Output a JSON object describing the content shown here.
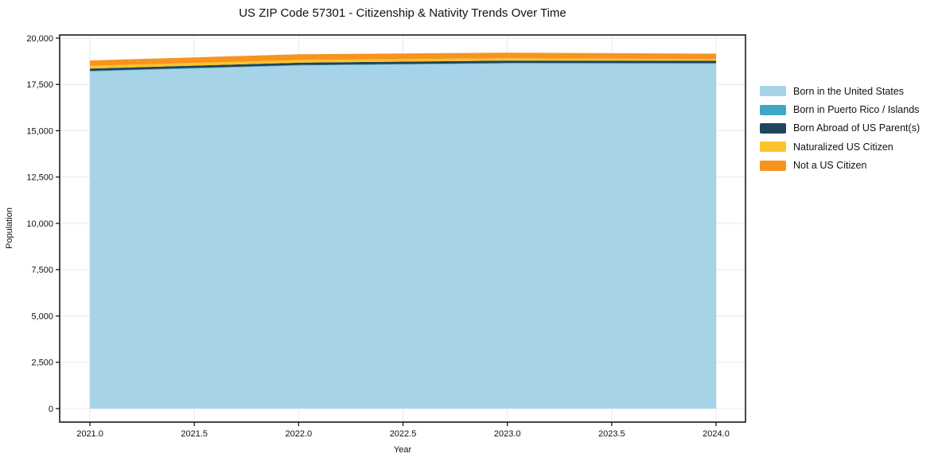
{
  "title": "US ZIP Code 57301 - Citizenship & Nativity Trends Over Time",
  "chart_data": {
    "type": "area",
    "stacked": true,
    "title": "US ZIP Code 57301 - Citizenship & Nativity Trends Over Time",
    "xlabel": "Year",
    "ylabel": "Population",
    "x": [
      2021,
      2022,
      2023,
      2024
    ],
    "series": [
      {
        "name": "Born in the United States",
        "color": "#a6d3e8",
        "values": [
          18200,
          18520,
          18630,
          18620
        ]
      },
      {
        "name": "Born in Puerto Rico / Islands",
        "color": "#3fa6c3",
        "values": [
          30,
          30,
          30,
          30
        ]
      },
      {
        "name": "Born Abroad of US Parent(s)",
        "color": "#1f455c",
        "values": [
          125,
          125,
          125,
          125
        ]
      },
      {
        "name": "Naturalized US Citizen",
        "color": "#fcc32d",
        "values": [
          150,
          145,
          130,
          90
        ]
      },
      {
        "name": "Not a US Citizen",
        "color": "#f7941e",
        "values": [
          290,
          310,
          300,
          295
        ]
      }
    ],
    "xlim": [
      2020.855,
      2024.141
    ],
    "ylim": [
      -730,
      20170
    ],
    "xticks": [
      2021.0,
      2021.5,
      2022.0,
      2022.5,
      2023.0,
      2023.5,
      2024.0
    ],
    "xtick_labels": [
      "2021.0",
      "2021.5",
      "2022.0",
      "2022.5",
      "2023.0",
      "2023.5",
      "2024.0"
    ],
    "yticks": [
      0,
      2500,
      5000,
      7500,
      10000,
      12500,
      15000,
      17500,
      20000
    ],
    "ytick_labels": [
      "0",
      "2,500",
      "5,000",
      "7,500",
      "10,000",
      "12,500",
      "15,000",
      "17,500",
      "20,000"
    ],
    "grid": true,
    "grid_color": "#e8e8e8",
    "spine_color": "#1a1a1a",
    "legend_position": "right"
  }
}
